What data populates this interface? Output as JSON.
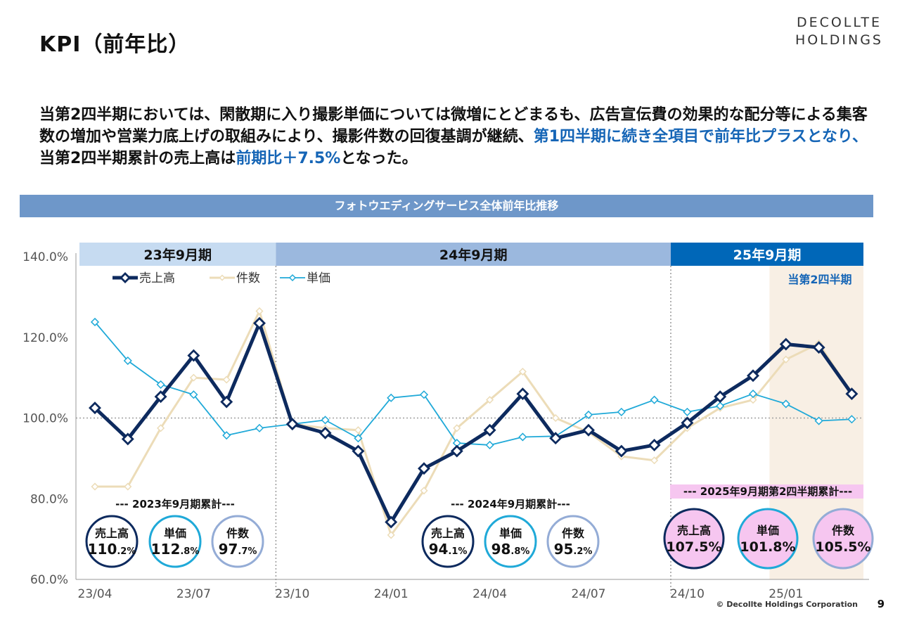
{
  "header": {
    "title": "KPI（前年比）",
    "logo_line1": "DECOLLTE",
    "logo_line2": "HOLDINGS"
  },
  "summary": {
    "part1": "当第2四半期においては、閑散期に入り撮影単価については微増にとどまるも、広告宣伝費の効果的な配分等による集客数の増加や営業力底上げの取組みにより、撮影件数の回復基調が継続、",
    "part2": "第1四半期に続き全項目で前年比プラスとなり、",
    "part3": "当第2四半期累計の売上高は",
    "part4": "前期比＋7.5%",
    "part5": "となった。"
  },
  "banner": "フォトウエディングサービス全体前年比推移",
  "colors": {
    "sales": "#0d2a5e",
    "count": "#ecdcb8",
    "price": "#1fa9d8",
    "banner": "#6e97c9",
    "fy25_band": "#0067b8",
    "pink": "#f6c6f0",
    "highlight_bg": "#f8efe4"
  },
  "chart_data": {
    "type": "line",
    "ylim": [
      60,
      140
    ],
    "yticks": [
      "60.0%",
      "80.0%",
      "100.0%",
      "120.0%",
      "140.0%"
    ],
    "xticks": [
      "23/04",
      "23/07",
      "23/10",
      "24/01",
      "24/04",
      "24/07",
      "24/10",
      "25/01"
    ],
    "x": [
      "23/04",
      "23/05",
      "23/06",
      "23/07",
      "23/08",
      "23/09",
      "23/10",
      "23/11",
      "23/12",
      "24/01",
      "24/02",
      "24/03",
      "24/04",
      "24/05",
      "24/06",
      "24/07",
      "24/08",
      "24/09",
      "24/10",
      "24/11",
      "24/12",
      "25/01",
      "25/02",
      "25/03"
    ],
    "series": [
      {
        "name": "売上高",
        "values": [
          102.5,
          94.8,
          105.3,
          115.5,
          104.0,
          123.5,
          98.5,
          96.3,
          91.8,
          74.2,
          87.5,
          91.8,
          97.0,
          106.0,
          95.0,
          97.0,
          91.8,
          93.3,
          98.8,
          105.3,
          110.5,
          118.3,
          117.5,
          106.0
        ]
      },
      {
        "name": "件数",
        "values": [
          83.0,
          83.0,
          97.5,
          110.0,
          109.5,
          126.5,
          98.5,
          97.5,
          97.0,
          71.0,
          82.0,
          97.5,
          104.5,
          111.5,
          100.0,
          96.5,
          90.5,
          89.5,
          97.5,
          102.5,
          104.5,
          114.5,
          118.5,
          106.0
        ]
      },
      {
        "name": "単価",
        "values": [
          123.8,
          114.2,
          108.3,
          105.8,
          95.7,
          97.5,
          98.5,
          99.5,
          95.0,
          105.0,
          105.8,
          93.8,
          93.3,
          95.3,
          95.5,
          100.8,
          101.5,
          104.5,
          101.5,
          103.0,
          106.0,
          103.5,
          99.3,
          99.7
        ]
      }
    ],
    "periods": [
      {
        "label": "23年9月期"
      },
      {
        "label": "24年9月期"
      },
      {
        "label": "25年9月期",
        "sublabel": "当第2四半期"
      }
    ],
    "cumulative": [
      {
        "title": "--- 2023年9月期累計---",
        "items": [
          {
            "label": "売上高",
            "value": "110",
            "decimal": ".2%"
          },
          {
            "label": "単価",
            "value": "112",
            "decimal": ".8%"
          },
          {
            "label": "件数",
            "value": "97",
            "decimal": ".7%"
          }
        ]
      },
      {
        "title": "--- 2024年9月期累計---",
        "items": [
          {
            "label": "売上高",
            "value": "94",
            "decimal": ".1%"
          },
          {
            "label": "単価",
            "value": "98",
            "decimal": ".8%"
          },
          {
            "label": "件数",
            "value": "95",
            "decimal": ".2%"
          }
        ]
      },
      {
        "title": "--- 2025年9月期第2四半期累計---",
        "items": [
          {
            "label": "売上高",
            "value": "107.5%",
            "decimal": ""
          },
          {
            "label": "単価",
            "value": "101.8%",
            "decimal": ""
          },
          {
            "label": "件数",
            "value": "105.5%",
            "decimal": ""
          }
        ]
      }
    ]
  },
  "footer": {
    "copyright": "© Decollte Holdings Corporation",
    "page_number": "9"
  }
}
